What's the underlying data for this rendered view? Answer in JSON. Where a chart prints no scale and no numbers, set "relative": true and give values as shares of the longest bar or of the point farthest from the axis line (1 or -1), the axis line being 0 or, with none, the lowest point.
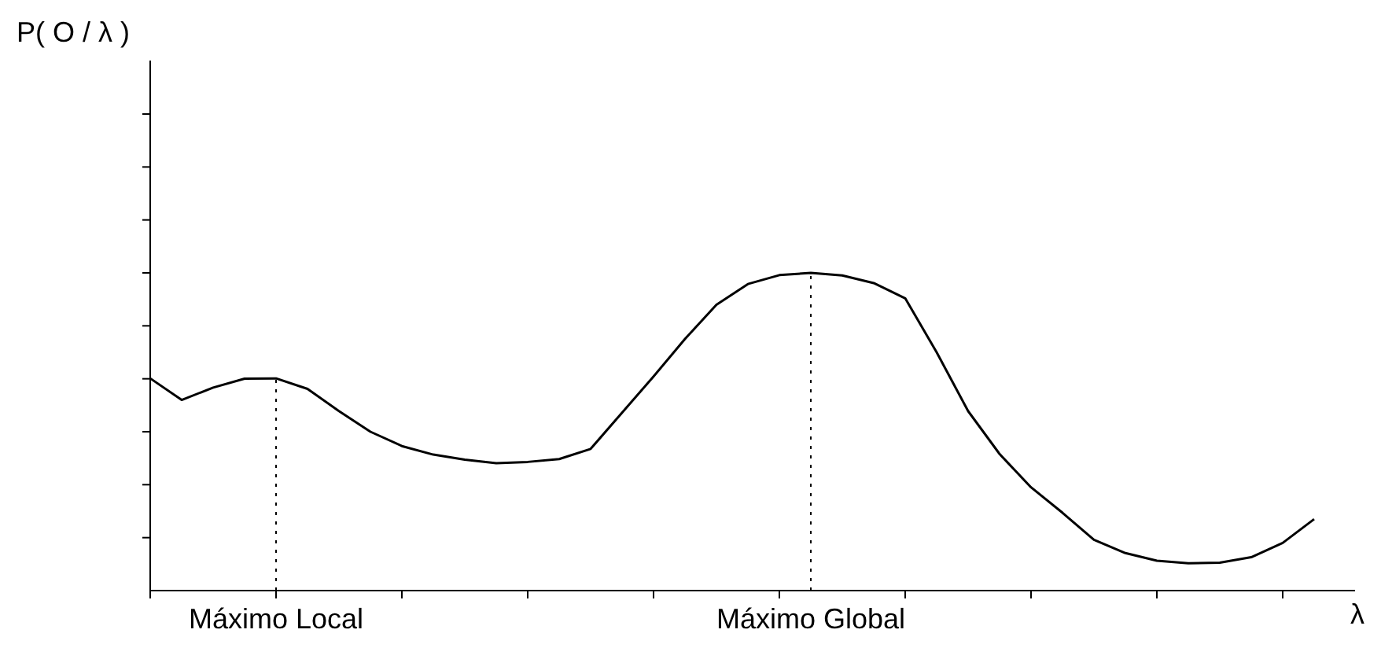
{
  "chart_data": {
    "type": "line",
    "relative": true,
    "xlabel": "λ",
    "grid": false,
    "marker": "none",
    "line_style": "solid",
    "categories": [
      null,
      null,
      null,
      null,
      null,
      null,
      null,
      null,
      null,
      null,
      null,
      null,
      null,
      null,
      null,
      null,
      null,
      null,
      null,
      null,
      null,
      null,
      null,
      null,
      null,
      null,
      null,
      null,
      null,
      null,
      null,
      null,
      null,
      null,
      null,
      null,
      null,
      null
    ],
    "series": [
      {
        "color": "#000000",
        "values": [
          0.668,
          0.6,
          0.639,
          0.667,
          0.668,
          0.635,
          0.565,
          0.5,
          0.455,
          0.428,
          0.412,
          0.401,
          0.405,
          0.414,
          0.446,
          0.56,
          0.674,
          0.792,
          0.9,
          0.965,
          0.993,
          1.0,
          0.992,
          0.968,
          0.92,
          0.75,
          0.565,
          0.43,
          0.325,
          0.245,
          0.16,
          0.118,
          0.094,
          0.086,
          0.088,
          0.105,
          0.15,
          0.225
        ]
      }
    ],
    "annotations": [
      "P( O / λ )",
      "Máximo Local",
      "Máximo Global"
    ]
  }
}
